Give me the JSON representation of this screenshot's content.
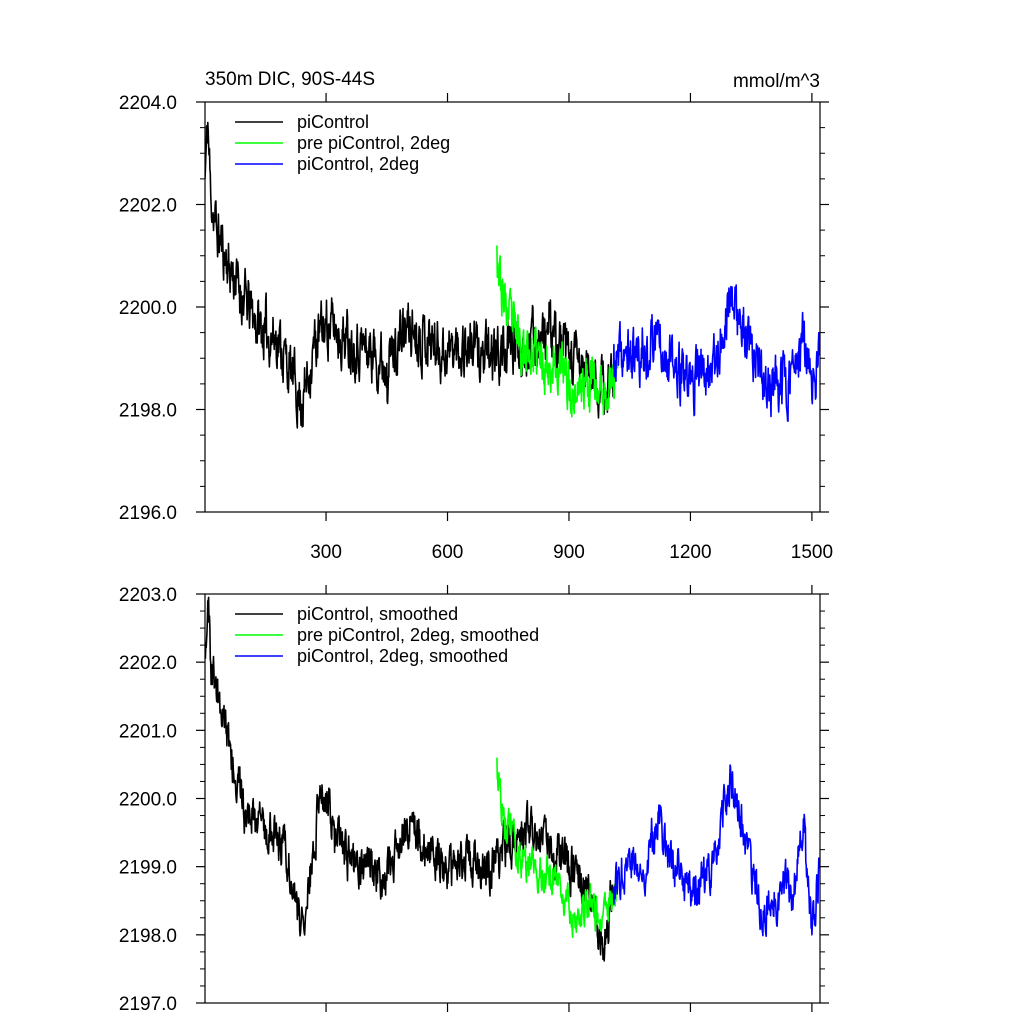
{
  "figure": {
    "title": "350m DIC, 90S-44S",
    "units": "mmol/m^3"
  },
  "chart_data": [
    {
      "type": "line",
      "title": "350m DIC, 90S-44S",
      "units": "mmol/m^3",
      "xlabel": "",
      "ylabel": "",
      "xlim": [
        1,
        1520
      ],
      "ylim": [
        2196.0,
        2204.0
      ],
      "x_ticks": [
        300,
        600,
        900,
        1200,
        1500
      ],
      "x_tick_labels": [
        "300",
        "600",
        "900",
        "1200",
        "1500"
      ],
      "y_ticks": [
        2196.0,
        2198.0,
        2200.0,
        2202.0,
        2204.0
      ],
      "y_tick_labels": [
        "2196.0",
        "2198.0",
        "2200.0",
        "2202.0",
        "2204.0"
      ],
      "grid": false,
      "legend_position": "top-left",
      "series": [
        {
          "name": "piControl",
          "color": "#000000",
          "x_start": 1,
          "x_end": 1010,
          "anchors": [
            [
              1,
              2202.5
            ],
            [
              8,
              2203.6
            ],
            [
              15,
              2202.2
            ],
            [
              30,
              2201.5
            ],
            [
              60,
              2200.8
            ],
            [
              90,
              2200.3
            ],
            [
              120,
              2199.8
            ],
            [
              150,
              2199.5
            ],
            [
              180,
              2199.4
            ],
            [
              210,
              2198.8
            ],
            [
              240,
              2198.1
            ],
            [
              270,
              2199.2
            ],
            [
              300,
              2199.7
            ],
            [
              350,
              2199.4
            ],
            [
              400,
              2199.2
            ],
            [
              450,
              2198.9
            ],
            [
              500,
              2199.6
            ],
            [
              550,
              2199.4
            ],
            [
              600,
              2199.1
            ],
            [
              650,
              2199.3
            ],
            [
              700,
              2199.0
            ],
            [
              750,
              2199.2
            ],
            [
              800,
              2199.3
            ],
            [
              850,
              2199.5
            ],
            [
              900,
              2199.0
            ],
            [
              950,
              2198.7
            ],
            [
              990,
              2198.3
            ],
            [
              1010,
              2198.8
            ]
          ],
          "noise": 0.6,
          "seed": 11
        },
        {
          "name": "pre piControl, 2deg",
          "color": "#00ff00",
          "x_start": 722,
          "x_end": 1020,
          "anchors": [
            [
              722,
              2201.2
            ],
            [
              735,
              2200.2
            ],
            [
              760,
              2199.6
            ],
            [
              800,
              2199.1
            ],
            [
              850,
              2198.9
            ],
            [
              880,
              2198.8
            ],
            [
              910,
              2198.3
            ],
            [
              950,
              2198.6
            ],
            [
              980,
              2198.3
            ],
            [
              1020,
              2198.8
            ]
          ],
          "noise": 0.55,
          "seed": 23
        },
        {
          "name": "piControl, 2deg",
          "color": "#0000ff",
          "x_start": 1010,
          "x_end": 1520,
          "anchors": [
            [
              1010,
              2198.8
            ],
            [
              1040,
              2199.1
            ],
            [
              1080,
              2199.0
            ],
            [
              1120,
              2199.6
            ],
            [
              1160,
              2198.7
            ],
            [
              1200,
              2198.5
            ],
            [
              1240,
              2198.8
            ],
            [
              1280,
              2199.4
            ],
            [
              1300,
              2200.4
            ],
            [
              1330,
              2199.4
            ],
            [
              1360,
              2198.8
            ],
            [
              1390,
              2198.4
            ],
            [
              1420,
              2198.5
            ],
            [
              1460,
              2198.7
            ],
            [
              1480,
              2199.4
            ],
            [
              1500,
              2198.2
            ],
            [
              1520,
              2199.2
            ]
          ],
          "noise": 0.6,
          "seed": 37
        }
      ]
    },
    {
      "type": "line",
      "title": "",
      "xlabel": "",
      "ylabel": "",
      "xlim": [
        1,
        1520
      ],
      "ylim": [
        2197.0,
        2203.0
      ],
      "x_ticks": [
        300,
        600,
        900,
        1200,
        1500
      ],
      "x_tick_labels": [],
      "y_ticks": [
        2197.0,
        2198.0,
        2199.0,
        2200.0,
        2201.0,
        2202.0,
        2203.0
      ],
      "y_tick_labels": [
        "2197.0",
        "2198.0",
        "2199.0",
        "2200.0",
        "2201.0",
        "2202.0",
        "2203.0"
      ],
      "grid": false,
      "legend_position": "top-left",
      "series": [
        {
          "name": "piControl, smoothed",
          "color": "#000000",
          "x_start": 1,
          "x_end": 1010,
          "anchors": [
            [
              1,
              2202.3
            ],
            [
              8,
              2202.9
            ],
            [
              15,
              2202.0
            ],
            [
              40,
              2201.3
            ],
            [
              70,
              2200.6
            ],
            [
              100,
              2199.8
            ],
            [
              150,
              2199.6
            ],
            [
              200,
              2199.3
            ],
            [
              230,
              2198.4
            ],
            [
              245,
              2198.1
            ],
            [
              260,
              2199.0
            ],
            [
              290,
              2200.2
            ],
            [
              320,
              2199.6
            ],
            [
              350,
              2199.1
            ],
            [
              400,
              2199.0
            ],
            [
              450,
              2198.8
            ],
            [
              500,
              2199.7
            ],
            [
              550,
              2199.3
            ],
            [
              600,
              2198.9
            ],
            [
              650,
              2199.2
            ],
            [
              700,
              2198.9
            ],
            [
              750,
              2199.3
            ],
            [
              800,
              2199.5
            ],
            [
              850,
              2199.4
            ],
            [
              900,
              2199.0
            ],
            [
              950,
              2198.6
            ],
            [
              985,
              2197.8
            ],
            [
              1010,
              2198.7
            ]
          ],
          "noise": 0.35,
          "seed": 51
        },
        {
          "name": "pre piControl, 2deg, smoothed",
          "color": "#00ff00",
          "x_start": 722,
          "x_end": 1020,
          "anchors": [
            [
              722,
              2200.6
            ],
            [
              740,
              2199.7
            ],
            [
              770,
              2199.2
            ],
            [
              800,
              2199.0
            ],
            [
              840,
              2198.9
            ],
            [
              870,
              2198.9
            ],
            [
              910,
              2198.3
            ],
            [
              950,
              2198.5
            ],
            [
              980,
              2198.2
            ],
            [
              1020,
              2198.8
            ]
          ],
          "noise": 0.3,
          "seed": 63
        },
        {
          "name": "piControl, 2deg, smoothed",
          "color": "#0000ff",
          "x_start": 1010,
          "x_end": 1520,
          "anchors": [
            [
              1010,
              2198.7
            ],
            [
              1050,
              2199.2
            ],
            [
              1080,
              2198.8
            ],
            [
              1120,
              2199.8
            ],
            [
              1160,
              2198.9
            ],
            [
              1200,
              2198.7
            ],
            [
              1240,
              2198.8
            ],
            [
              1270,
              2199.4
            ],
            [
              1300,
              2200.3
            ],
            [
              1330,
              2199.5
            ],
            [
              1360,
              2198.6
            ],
            [
              1390,
              2198.3
            ],
            [
              1420,
              2198.6
            ],
            [
              1460,
              2198.8
            ],
            [
              1480,
              2199.5
            ],
            [
              1500,
              2198.0
            ],
            [
              1520,
              2199.1
            ]
          ],
          "noise": 0.35,
          "seed": 77
        }
      ]
    }
  ]
}
